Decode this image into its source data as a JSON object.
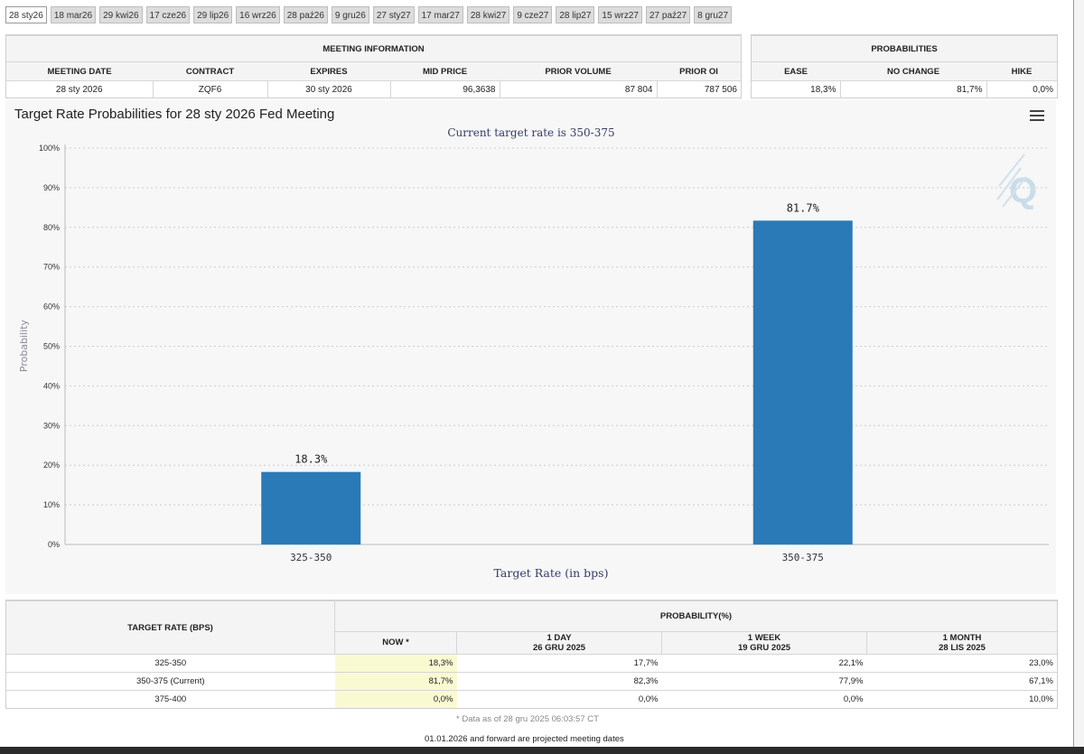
{
  "tabs": [
    "28 sty26",
    "18 mar26",
    "29 kwi26",
    "17 cze26",
    "29 lip26",
    "16 wrz26",
    "28 paź26",
    "9 gru26",
    "27 sty27",
    "17 mar27",
    "28 kwi27",
    "9 cze27",
    "28 lip27",
    "15 wrz27",
    "27 paź27",
    "8 gru27"
  ],
  "active_tab": 0,
  "meeting_info": {
    "title": "MEETING INFORMATION",
    "headers": [
      "MEETING DATE",
      "CONTRACT",
      "EXPIRES",
      "MID PRICE",
      "PRIOR VOLUME",
      "PRIOR OI"
    ],
    "row": [
      "28 sty 2026",
      "ZQF6",
      "30 sty 2026",
      "96,3638",
      "87 804",
      "787 506"
    ]
  },
  "probabilities": {
    "title": "PROBABILITIES",
    "headers": [
      "EASE",
      "NO CHANGE",
      "HIKE"
    ],
    "row": [
      "18,3%",
      "81,7%",
      "0,0%"
    ]
  },
  "chart": {
    "title": "Target Rate Probabilities for 28 sty 2026 Fed Meeting",
    "menu_icon": "hamburger-menu-icon",
    "watermark_icon": "q-logo-icon",
    "bar_color": "#2a7ab8"
  },
  "chart_data": {
    "type": "bar",
    "title": "Target Rate Probabilities for 28 sty 2026 Fed Meeting",
    "subtitle": "Current target rate is 350-375",
    "categories": [
      "325-350",
      "350-375"
    ],
    "values": [
      18.3,
      81.7
    ],
    "data_labels": [
      "18.3%",
      "81.7%"
    ],
    "xlabel": "Target Rate (in bps)",
    "ylabel": "Probability",
    "ylim": [
      0,
      100
    ],
    "yticks": [
      "0%",
      "10%",
      "20%",
      "30%",
      "40%",
      "50%",
      "60%",
      "70%",
      "80%",
      "90%",
      "100%"
    ],
    "grid": true
  },
  "prob_table": {
    "col_header": "TARGET RATE (BPS)",
    "group_header": "PROBABILITY(%)",
    "now_label": "NOW *",
    "periods": [
      {
        "label": "1 DAY",
        "date": "26 GRU 2025"
      },
      {
        "label": "1 WEEK",
        "date": "19 GRU 2025"
      },
      {
        "label": "1 MONTH",
        "date": "28 LIS 2025"
      }
    ],
    "rows": [
      {
        "rate": "325-350",
        "now": "18,3%",
        "day": "17,7%",
        "week": "22,1%",
        "month": "23,0%"
      },
      {
        "rate": "350-375 (Current)",
        "now": "81,7%",
        "day": "82,3%",
        "week": "77,9%",
        "month": "67,1%"
      },
      {
        "rate": "375-400",
        "now": "0,0%",
        "day": "0,0%",
        "week": "0,0%",
        "month": "10,0%"
      }
    ],
    "footnote": "* Data as of 28 gru 2025 06:03:57 CT",
    "projection_note": "01.01.2026 and forward are projected meeting dates"
  }
}
